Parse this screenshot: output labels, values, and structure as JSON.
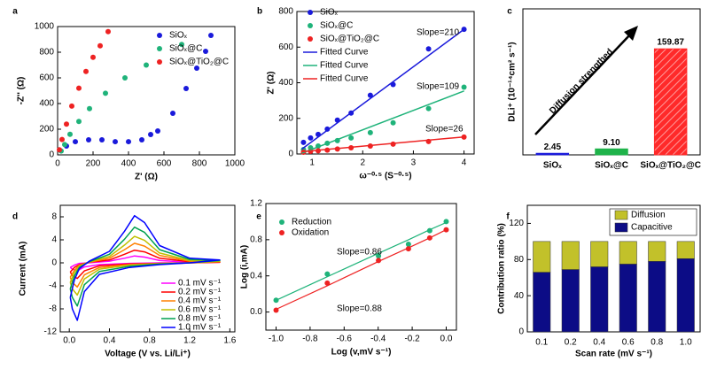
{
  "chart_data": [
    {
      "type": "scatter",
      "label": "a",
      "xlabel": "Z' (Ω)",
      "ylabel": "-Z'' (Ω)",
      "xlim": [
        0,
        1000
      ],
      "ylim": [
        0,
        1000
      ],
      "xticks": [
        0,
        200,
        400,
        600,
        800,
        1000
      ],
      "yticks": [
        0,
        200,
        400,
        600,
        800,
        1000
      ],
      "series": [
        {
          "name": "SiOₓ",
          "color": "#1a1adb",
          "x": [
            50,
            100,
            175,
            250,
            325,
            400,
            475,
            525,
            565,
            650,
            725,
            785,
            835,
            865
          ],
          "values": [
            69,
            103,
            117,
            117,
            103,
            103,
            117,
            159,
            186,
            324,
            517,
            676,
            807,
            931
          ]
        },
        {
          "name": "SiOₓ@C",
          "color": "#1fb37a",
          "x": [
            20,
            40,
            70,
            120,
            180,
            270,
            380,
            500,
            700
          ],
          "values": [
            30,
            80,
            160,
            260,
            360,
            480,
            600,
            700,
            860
          ]
        },
        {
          "name": "SiOₓ@TiO₂@C",
          "color": "#ee2222",
          "x": [
            10,
            25,
            50,
            80,
            120,
            160,
            200,
            240,
            285
          ],
          "values": [
            40,
            120,
            240,
            380,
            520,
            650,
            760,
            850,
            960
          ]
        }
      ]
    },
    {
      "type": "scatter",
      "label": "b",
      "xlabel": "ω⁻⁰·⁵ (S⁻⁰·⁵)",
      "ylabel": "Z' (Ω)",
      "xlim": [
        0.7,
        4.2
      ],
      "ylim": [
        0,
        800
      ],
      "xticks": [
        1,
        2,
        3,
        4
      ],
      "yticks": [
        0,
        200,
        400,
        600,
        800
      ],
      "series": [
        {
          "name": "SiOₓ",
          "color": "#1a1adb",
          "x": [
            0.83,
            0.97,
            1.12,
            1.3,
            1.5,
            1.77,
            2.15,
            2.6,
            3.3,
            4.0
          ],
          "values": [
            65,
            90,
            110,
            140,
            190,
            230,
            330,
            390,
            590,
            700
          ]
        },
        {
          "name": "SiOₓ@C",
          "color": "#1fb37a",
          "x": [
            0.83,
            0.97,
            1.12,
            1.3,
            1.5,
            1.77,
            2.15,
            2.6,
            3.3,
            4.0
          ],
          "values": [
            25,
            35,
            45,
            60,
            75,
            90,
            120,
            175,
            255,
            375
          ]
        },
        {
          "name": "SiOₓ@TiO₂@C",
          "color": "#ee2222",
          "x": [
            0.83,
            0.97,
            1.12,
            1.3,
            1.5,
            1.77,
            2.15,
            2.6,
            3.3,
            4.0
          ],
          "values": [
            10,
            15,
            18,
            22,
            28,
            35,
            45,
            55,
            70,
            95
          ]
        },
        {
          "name": "Fitted Curve",
          "color": "#1a1adb",
          "style": "line",
          "x": [
            0.8,
            4.0
          ],
          "values": [
            28,
            700
          ]
        },
        {
          "name": "Fitted Curve",
          "color": "#1fb37a",
          "style": "line",
          "x": [
            0.8,
            4.0
          ],
          "values": [
            5,
            354
          ]
        },
        {
          "name": "Fitted Curve",
          "color": "#ee2222",
          "style": "line",
          "x": [
            0.8,
            4.0
          ],
          "values": [
            13,
            96
          ]
        }
      ],
      "annotations": [
        {
          "text": "Slope=210",
          "color": "#1a1adb"
        },
        {
          "text": "Slope=109",
          "color": "#1fb37a"
        },
        {
          "text": "Slope=26",
          "color": "#ee2222"
        }
      ]
    },
    {
      "type": "bar",
      "label": "c",
      "ylabel": "DLi⁺ (10⁻¹⁴cm² s⁻¹)",
      "ylim": [
        0,
        220
      ],
      "categories": [
        "SiOₓ",
        "SiOₓ@C",
        "SiOₓ@TiO₂@C"
      ],
      "values": [
        2.45,
        9.1,
        159.87
      ],
      "value_labels": [
        "2.45",
        "9.10",
        "159.87"
      ],
      "colors": [
        "#1a1adb",
        "#1fb34a",
        "#ff2a2a"
      ],
      "hatch": [
        false,
        false,
        true
      ],
      "annotations": [
        {
          "text": "Diffusion strengthed",
          "color": "#000000"
        }
      ]
    },
    {
      "type": "line",
      "label": "d",
      "xlabel": "Voltage (V vs. Li/Li⁺)",
      "ylabel": "Current (mA)",
      "xlim": [
        -0.09,
        1.65
      ],
      "ylim": [
        -12,
        10
      ],
      "xticks": [
        {
          "value": 0,
          "label": "0.0"
        },
        0.4,
        0.8,
        1.2,
        1.6
      ],
      "yticks": [
        -12,
        -8,
        -4,
        0,
        4,
        8
      ],
      "x": [
        0.01,
        0.05,
        0.1,
        0.2,
        0.4,
        0.55,
        0.65,
        0.75,
        0.9,
        1.2,
        1.5,
        1.2,
        0.9,
        0.6,
        0.3,
        0.15,
        0.08,
        0.03,
        0.01
      ],
      "series": [
        {
          "name": "0.1 mV s⁻¹",
          "color": "#ff00ff",
          "values": [
            -0.8,
            -0.4,
            -0.1,
            0,
            0.3,
            0.8,
            1.2,
            1,
            0.4,
            0.1,
            0.1,
            0,
            0,
            -0.1,
            -0.3,
            -0.7,
            -1.4,
            -1.1,
            -0.8
          ]
        },
        {
          "name": "0.2 mV s⁻¹",
          "color": "#ff0000",
          "values": [
            -1.6,
            -0.8,
            -0.3,
            0.1,
            0.5,
            1.5,
            2.2,
            1.9,
            0.8,
            0.2,
            0.1,
            0,
            -0.1,
            -0.2,
            -0.5,
            -1.4,
            -2.7,
            -2.2,
            -1.6
          ]
        },
        {
          "name": "0.4 mV s⁻¹",
          "color": "#ff8000",
          "values": [
            -2.5,
            -1.3,
            -0.4,
            0.1,
            0.8,
            2.3,
            3.4,
            2.9,
            1.3,
            0.3,
            0.2,
            0,
            -0.1,
            -0.3,
            -0.8,
            -2.1,
            -4.2,
            -3.4,
            -2.5
          ]
        },
        {
          "name": "0.6 mV s⁻¹",
          "color": "#c0c000",
          "values": [
            -3.4,
            -1.7,
            -0.6,
            0.2,
            1.1,
            3.1,
            4.6,
            3.9,
            1.7,
            0.4,
            0.3,
            0,
            -0.2,
            -0.4,
            -1.1,
            -2.8,
            -5.6,
            -4.5,
            -3.4
          ]
        },
        {
          "name": "0.8 mV s⁻¹",
          "color": "#00a050",
          "values": [
            -4.5,
            -2.3,
            -0.8,
            0.2,
            1.5,
            4.1,
            6.2,
            5.3,
            2.3,
            0.6,
            0.4,
            0,
            -0.2,
            -0.6,
            -1.5,
            -3.8,
            -7.5,
            -6,
            -4.5
          ]
        },
        {
          "name": "1.0 mV s⁻¹",
          "color": "#0000ff",
          "values": [
            -6,
            -3,
            -1,
            0.3,
            2,
            5.5,
            8.2,
            7,
            3,
            0.8,
            0.5,
            0,
            -0.3,
            -0.8,
            -2,
            -5,
            -10,
            -8,
            -6
          ]
        }
      ]
    },
    {
      "type": "scatter",
      "label": "e",
      "xlabel": "Log (v,mV s⁻¹)",
      "ylabel": "Log (i,mA)",
      "xlim": [
        -1.06,
        0.06
      ],
      "ylim": [
        -0.2,
        1.2
      ],
      "xticks": [
        {
          "value": -1,
          "label": "-1.0"
        },
        -0.8,
        -0.6,
        -0.4,
        -0.2,
        {
          "value": 0,
          "label": "0.0"
        }
      ],
      "yticks": [
        {
          "value": 0,
          "label": "0.0"
        },
        0.4,
        0.8,
        1.2
      ],
      "x": [
        -1,
        -0.699,
        -0.398,
        -0.222,
        -0.097,
        0
      ],
      "series": [
        {
          "name": "Reduction",
          "color": "#1fb37a",
          "values": [
            0.13,
            0.42,
            0.62,
            0.75,
            0.9,
            1.0
          ],
          "fit": [
            0.13,
            0.39,
            0.65,
            0.8,
            0.91,
            0.99
          ]
        },
        {
          "name": "Oxidation",
          "color": "#ee2222",
          "values": [
            0.02,
            0.32,
            0.57,
            0.7,
            0.82,
            0.91
          ],
          "fit": [
            0.03,
            0.29,
            0.56,
            0.71,
            0.82,
            0.91
          ]
        }
      ],
      "annotations": [
        {
          "text": "Slope=0.86",
          "color": "#1fb37a"
        },
        {
          "text": "Slope=0.88",
          "color": "#ee2222"
        }
      ]
    },
    {
      "type": "bar",
      "label": "f",
      "xlabel": "Scan rate (mV s⁻¹)",
      "ylabel": "Contribution ratio (%)",
      "ylim": [
        0,
        140
      ],
      "yticks": [
        0,
        40,
        80,
        120
      ],
      "stacked": true,
      "categories": [
        "0.1",
        "0.2",
        "0.4",
        "0.6",
        "0.8",
        "1.0"
      ],
      "series": [
        {
          "name": "Diffusion",
          "color": "#c2c12a",
          "values": [
            34,
            31,
            28,
            25,
            22,
            19
          ]
        },
        {
          "name": "Capacitive",
          "color": "#0c0c86",
          "values": [
            66,
            69,
            72,
            75,
            78,
            81
          ]
        }
      ]
    }
  ]
}
